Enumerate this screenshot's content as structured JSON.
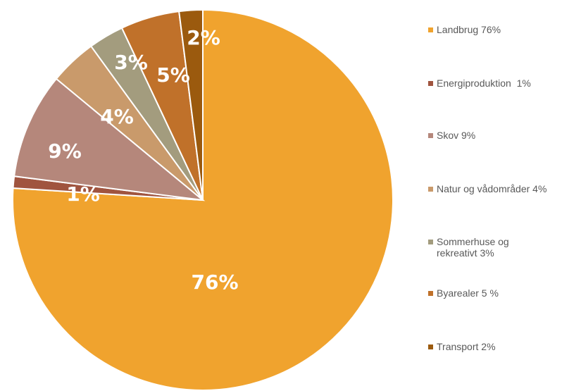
{
  "chart_data": {
    "type": "pie",
    "categories": [
      "Landbrug 76%",
      "Energiproduktion  1%",
      "Skov 9%",
      "Natur og vådområder 4%",
      "Sommerhuse og rekreativt 3%",
      "Byarealer 5 %",
      "Transport 2%"
    ],
    "values": [
      76,
      1,
      9,
      4,
      3,
      5,
      2
    ],
    "value_labels": [
      "76%",
      "1%",
      "9%",
      "4%",
      "3%",
      "5%",
      "2%"
    ],
    "colors": [
      "#f0a32e",
      "#a0543f",
      "#b5877b",
      "#c99a6b",
      "#a39c7e",
      "#c0712a",
      "#9b5a0e"
    ],
    "legend": "right"
  }
}
